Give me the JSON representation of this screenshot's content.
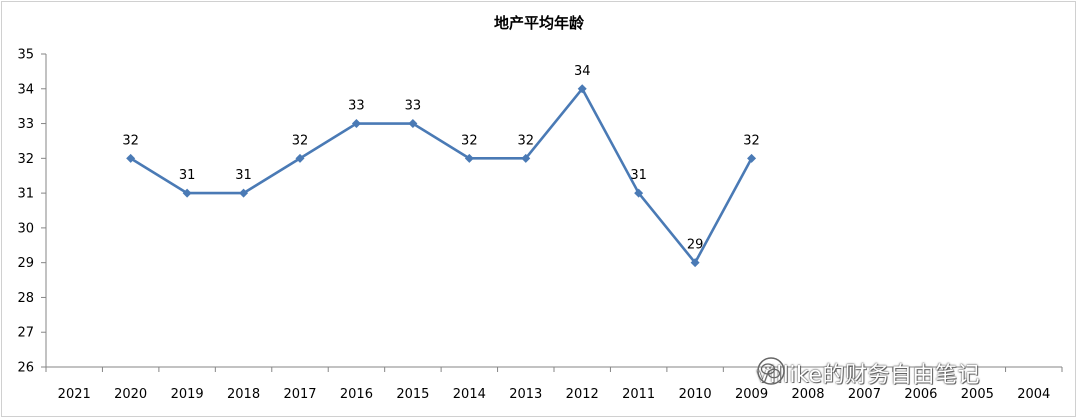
{
  "chart_data": {
    "type": "line",
    "title": "地产平均年龄",
    "categories": [
      "2021",
      "2020",
      "2019",
      "2018",
      "2017",
      "2016",
      "2015",
      "2014",
      "2013",
      "2012",
      "2011",
      "2010",
      "2009",
      "2008",
      "2007",
      "2006",
      "2005",
      "2004"
    ],
    "series": [
      {
        "values": [
          null,
          32,
          31,
          31,
          32,
          33,
          33,
          32,
          32,
          34,
          31,
          29,
          32,
          null,
          null,
          null,
          null,
          null
        ],
        "color": "#4a7ab5"
      }
    ],
    "data_labels": true,
    "ylim": [
      26,
      35
    ],
    "yticks": [
      26,
      27,
      28,
      29,
      30,
      31,
      32,
      33,
      34,
      35
    ],
    "xlabel": "",
    "ylabel": "",
    "grid": false,
    "legend": "none"
  },
  "watermark": {
    "text": "villike的财务自由笔记",
    "icon": "wechat-icon"
  }
}
